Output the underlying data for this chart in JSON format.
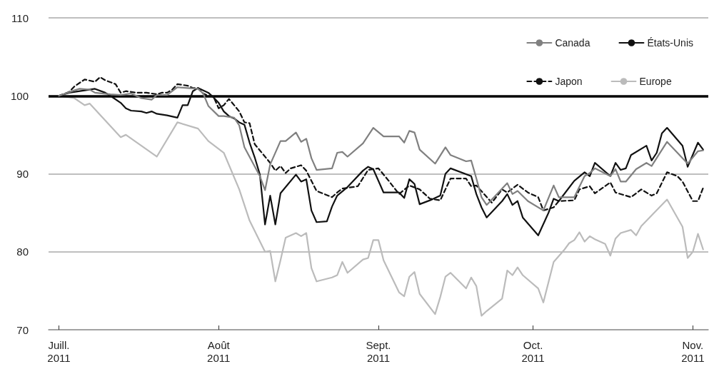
{
  "chart_data": {
    "type": "line",
    "legend": "top right",
    "grid": "y",
    "marker": "none",
    "xlim": [
      "2011-06-29",
      "2011-11-04"
    ],
    "xticks": [
      {
        "value": "2011-07-01",
        "label": "Juill.\n2011"
      },
      {
        "value": "2011-08-01",
        "label": "Août\n2011"
      },
      {
        "value": "2011-09-01",
        "label": "Sept.\n2011"
      },
      {
        "value": "2011-10-01",
        "label": "Oct.\n2011"
      },
      {
        "value": "2011-11-01",
        "label": "Nov.\n2011"
      }
    ],
    "ylim": [
      70,
      110
    ],
    "yticks": [
      70,
      80,
      90,
      100,
      110
    ],
    "ref_lines": [
      {
        "axis": "y",
        "value": 100,
        "color": "#000000",
        "line_style": "solid"
      }
    ],
    "series": [
      {
        "name": "Canada",
        "color": "#808080",
        "line_style": "solid",
        "x": [
          "2011-07-01",
          "2011-07-04",
          "2011-07-05",
          "2011-07-07",
          "2011-07-08",
          "2011-07-11",
          "2011-07-13",
          "2011-07-15",
          "2011-07-17",
          "2011-07-19",
          "2011-07-20",
          "2011-07-22",
          "2011-07-24",
          "2011-07-26",
          "2011-07-28",
          "2011-07-29",
          "2011-07-30",
          "2011-08-01",
          "2011-08-02",
          "2011-08-04",
          "2011-08-05",
          "2011-08-06",
          "2011-08-09",
          "2011-08-10",
          "2011-08-11",
          "2011-08-13",
          "2011-08-14",
          "2011-08-16",
          "2011-08-17",
          "2011-08-18",
          "2011-08-19",
          "2011-08-20",
          "2011-08-23",
          "2011-08-24",
          "2011-08-25",
          "2011-08-26",
          "2011-08-29",
          "2011-08-31",
          "2011-09-02",
          "2011-09-05",
          "2011-09-06",
          "2011-09-07",
          "2011-09-08",
          "2011-09-09",
          "2011-09-12",
          "2011-09-14",
          "2011-09-15",
          "2011-09-18",
          "2011-09-19",
          "2011-09-20",
          "2011-09-21",
          "2011-09-22",
          "2011-09-26",
          "2011-09-27",
          "2011-09-28",
          "2011-09-30",
          "2011-10-03",
          "2011-10-05",
          "2011-10-06",
          "2011-10-09",
          "2011-10-11",
          "2011-10-12",
          "2011-10-13",
          "2011-10-16",
          "2011-10-17",
          "2011-10-18",
          "2011-10-19",
          "2011-10-21",
          "2011-10-23",
          "2011-10-24",
          "2011-10-27",
          "2011-10-29",
          "2011-10-31",
          "2011-11-02",
          "2011-11-03"
        ],
        "values": [
          100,
          100.7,
          100.9,
          100.8,
          100.4,
          100.2,
          100.1,
          100.3,
          99.7,
          99.5,
          100.1,
          100.1,
          101.1,
          101,
          100.9,
          100.3,
          98.7,
          97.4,
          97.4,
          97.2,
          96.2,
          93.4,
          89.7,
          87.9,
          91.2,
          94.2,
          94.2,
          95.3,
          94.1,
          94.5,
          92,
          90.5,
          90.7,
          92.7,
          92.8,
          92.2,
          93.9,
          95.9,
          94.8,
          94.8,
          94,
          95.5,
          95.3,
          93.1,
          91.3,
          93.4,
          92.4,
          91.6,
          91.7,
          89.4,
          87,
          86,
          88.8,
          87.4,
          87.8,
          86.5,
          85.3,
          88.5,
          87,
          87,
          89.7,
          90.1,
          90.7,
          89.7,
          90.6,
          89,
          89,
          90.6,
          91.4,
          91,
          94.1,
          92.7,
          91.3,
          92.9,
          93
        ]
      },
      {
        "name": "États-Unis",
        "color": "#111111",
        "line_style": "solid",
        "x": [
          "2011-07-01",
          "2011-07-03",
          "2011-07-06",
          "2011-07-08",
          "2011-07-10",
          "2011-07-11",
          "2011-07-13",
          "2011-07-14",
          "2011-07-15",
          "2011-07-17",
          "2011-07-18",
          "2011-07-19",
          "2011-07-20",
          "2011-07-22",
          "2011-07-24",
          "2011-07-25",
          "2011-07-26",
          "2011-07-27",
          "2011-07-28",
          "2011-07-30",
          "2011-07-31",
          "2011-08-01",
          "2011-08-02",
          "2011-08-03",
          "2011-08-04",
          "2011-08-05",
          "2011-08-06",
          "2011-08-07",
          "2011-08-08",
          "2011-08-09",
          "2011-08-10",
          "2011-08-11",
          "2011-08-12",
          "2011-08-13",
          "2011-08-16",
          "2011-08-17",
          "2011-08-18",
          "2011-08-19",
          "2011-08-20",
          "2011-08-22",
          "2011-08-23",
          "2011-08-24",
          "2011-08-26",
          "2011-08-29",
          "2011-08-30",
          "2011-08-31",
          "2011-09-02",
          "2011-09-05",
          "2011-09-06",
          "2011-09-07",
          "2011-09-08",
          "2011-09-09",
          "2011-09-11",
          "2011-09-13",
          "2011-09-14",
          "2011-09-15",
          "2011-09-19",
          "2011-09-20",
          "2011-09-21",
          "2011-09-22",
          "2011-09-25",
          "2011-09-26",
          "2011-09-27",
          "2011-09-28",
          "2011-09-29",
          "2011-10-02",
          "2011-10-04",
          "2011-10-05",
          "2011-10-06",
          "2011-10-09",
          "2011-10-11",
          "2011-10-12",
          "2011-10-13",
          "2011-10-16",
          "2011-10-17",
          "2011-10-18",
          "2011-10-19",
          "2011-10-20",
          "2011-10-23",
          "2011-10-24",
          "2011-10-25",
          "2011-10-26",
          "2011-10-27",
          "2011-10-30",
          "2011-10-31",
          "2011-11-02",
          "2011-11-03"
        ],
        "values": [
          100,
          100.4,
          100.7,
          100.9,
          100.4,
          100,
          99.1,
          98.4,
          98.1,
          98,
          97.8,
          98,
          97.7,
          97.5,
          97.2,
          98.8,
          98.8,
          100.6,
          101,
          100.4,
          99.8,
          99.1,
          98,
          97.4,
          97.1,
          96.6,
          96.3,
          94,
          92.1,
          89.9,
          83.5,
          87.2,
          83.5,
          87.5,
          89.9,
          89,
          89.3,
          85.3,
          83.8,
          83.9,
          85.8,
          87.2,
          88.3,
          90.4,
          90.9,
          90.6,
          87.6,
          87.6,
          86.9,
          89.3,
          88.7,
          86.1,
          86.6,
          87.2,
          90,
          90.7,
          89.7,
          87.4,
          85.7,
          84.4,
          86.5,
          87.4,
          86,
          86.5,
          84.4,
          82.1,
          85,
          86.8,
          86.5,
          89.1,
          90.2,
          89.7,
          91.4,
          89.7,
          91.4,
          90.5,
          90.7,
          92.4,
          93.6,
          91.7,
          92.7,
          95.2,
          95.9,
          93.6,
          90.9,
          94,
          93.1
        ]
      },
      {
        "name": "Japon",
        "color": "#111111",
        "line_style": "dashed",
        "x": [
          "2011-07-01",
          "2011-07-03",
          "2011-07-04",
          "2011-07-06",
          "2011-07-08",
          "2011-07-09",
          "2011-07-10",
          "2011-07-12",
          "2011-07-13",
          "2011-07-14",
          "2011-07-16",
          "2011-07-18",
          "2011-07-20",
          "2011-07-21",
          "2011-07-22",
          "2011-07-23",
          "2011-07-24",
          "2011-07-26",
          "2011-07-27",
          "2011-07-28",
          "2011-07-29",
          "2011-07-30",
          "2011-07-31",
          "2011-08-01",
          "2011-08-02",
          "2011-08-03",
          "2011-08-05",
          "2011-08-06",
          "2011-08-07",
          "2011-08-08",
          "2011-08-09",
          "2011-08-11",
          "2011-08-12",
          "2011-08-13",
          "2011-08-14",
          "2011-08-15",
          "2011-08-17",
          "2011-08-18",
          "2011-08-20",
          "2011-08-23",
          "2011-08-24",
          "2011-08-25",
          "2011-08-28",
          "2011-08-30",
          "2011-09-01",
          "2011-09-03",
          "2011-09-05",
          "2011-09-07",
          "2011-09-09",
          "2011-09-11",
          "2011-09-13",
          "2011-09-15",
          "2011-09-18",
          "2011-09-19",
          "2011-09-20",
          "2011-09-23",
          "2011-09-25",
          "2011-09-26",
          "2011-09-28",
          "2011-09-30",
          "2011-10-02",
          "2011-10-03",
          "2011-10-05",
          "2011-10-06",
          "2011-10-09",
          "2011-10-10",
          "2011-10-12",
          "2011-10-13",
          "2011-10-16",
          "2011-10-17",
          "2011-10-20",
          "2011-10-22",
          "2011-10-24",
          "2011-10-25",
          "2011-10-27",
          "2011-10-29",
          "2011-10-30",
          "2011-11-01",
          "2011-11-02",
          "2011-11-03"
        ],
        "values": [
          100,
          100.5,
          101.2,
          102.1,
          101.8,
          102.4,
          102,
          101.5,
          100.4,
          100.6,
          100.4,
          100.4,
          100.2,
          100.4,
          100.4,
          100.8,
          101.5,
          101.3,
          101,
          101,
          100.3,
          100,
          99.9,
          98.4,
          98.8,
          99.6,
          98,
          96.6,
          96.5,
          93.8,
          93,
          91.4,
          90.4,
          91,
          90.1,
          90.7,
          91.1,
          90.4,
          87.8,
          87,
          87.6,
          88.1,
          88.4,
          90.5,
          90.7,
          89.1,
          87.4,
          88.5,
          88,
          86.8,
          86.6,
          89.4,
          89.4,
          88.4,
          88.5,
          86.3,
          88,
          87.6,
          88.6,
          87.6,
          87,
          85.3,
          85.7,
          86.5,
          86.6,
          88,
          88.4,
          87.5,
          88.9,
          87.6,
          87,
          88,
          87.2,
          87.5,
          90.2,
          89.7,
          89,
          86.5,
          86.5,
          88.2
        ]
      },
      {
        "name": "Europe",
        "color": "#bbbbbb",
        "line_style": "solid",
        "x": [
          "2011-07-01",
          "2011-07-04",
          "2011-07-06",
          "2011-07-07",
          "2011-07-13",
          "2011-07-14",
          "2011-07-20",
          "2011-07-24",
          "2011-07-28",
          "2011-07-30",
          "2011-08-02",
          "2011-08-05",
          "2011-08-07",
          "2011-08-10",
          "2011-08-11",
          "2011-08-12",
          "2011-08-13",
          "2011-08-14",
          "2011-08-16",
          "2011-08-17",
          "2011-08-18",
          "2011-08-19",
          "2011-08-20",
          "2011-08-23",
          "2011-08-24",
          "2011-08-25",
          "2011-08-26",
          "2011-08-29",
          "2011-08-30",
          "2011-08-31",
          "2011-09-01",
          "2011-09-02",
          "2011-09-05",
          "2011-09-06",
          "2011-09-07",
          "2011-09-08",
          "2011-09-09",
          "2011-09-12",
          "2011-09-13",
          "2011-09-14",
          "2011-09-15",
          "2011-09-18",
          "2011-09-19",
          "2011-09-20",
          "2011-09-21",
          "2011-09-22",
          "2011-09-25",
          "2011-09-26",
          "2011-09-27",
          "2011-09-28",
          "2011-09-29",
          "2011-10-02",
          "2011-10-03",
          "2011-10-05",
          "2011-10-07",
          "2011-10-08",
          "2011-10-09",
          "2011-10-10",
          "2011-10-11",
          "2011-10-12",
          "2011-10-13",
          "2011-10-15",
          "2011-10-16",
          "2011-10-17",
          "2011-10-18",
          "2011-10-20",
          "2011-10-21",
          "2011-10-22",
          "2011-10-27",
          "2011-10-30",
          "2011-10-31",
          "2011-11-01",
          "2011-11-02",
          "2011-11-03"
        ],
        "values": [
          100,
          99.7,
          98.8,
          99,
          94.7,
          95,
          92.2,
          96.6,
          95.8,
          94.2,
          92.7,
          88,
          84,
          80,
          80.1,
          76.2,
          78.9,
          81.8,
          82.4,
          82,
          82.4,
          77.9,
          76.2,
          76.7,
          77,
          78.7,
          77.3,
          79,
          79.2,
          81.5,
          81.5,
          78.9,
          74.8,
          74.3,
          76.8,
          77.4,
          74.6,
          72,
          74.2,
          76.8,
          77.3,
          75.3,
          76.7,
          75.6,
          71.8,
          72.4,
          74,
          77.6,
          77,
          78,
          77,
          75.3,
          73.5,
          78.7,
          80.2,
          81.1,
          81.5,
          82.5,
          81.3,
          82,
          81.6,
          81,
          79.5,
          81.7,
          82.4,
          82.8,
          82.1,
          83.3,
          86.7,
          83.2,
          79.2,
          80,
          82.3,
          80.3
        ]
      }
    ]
  }
}
